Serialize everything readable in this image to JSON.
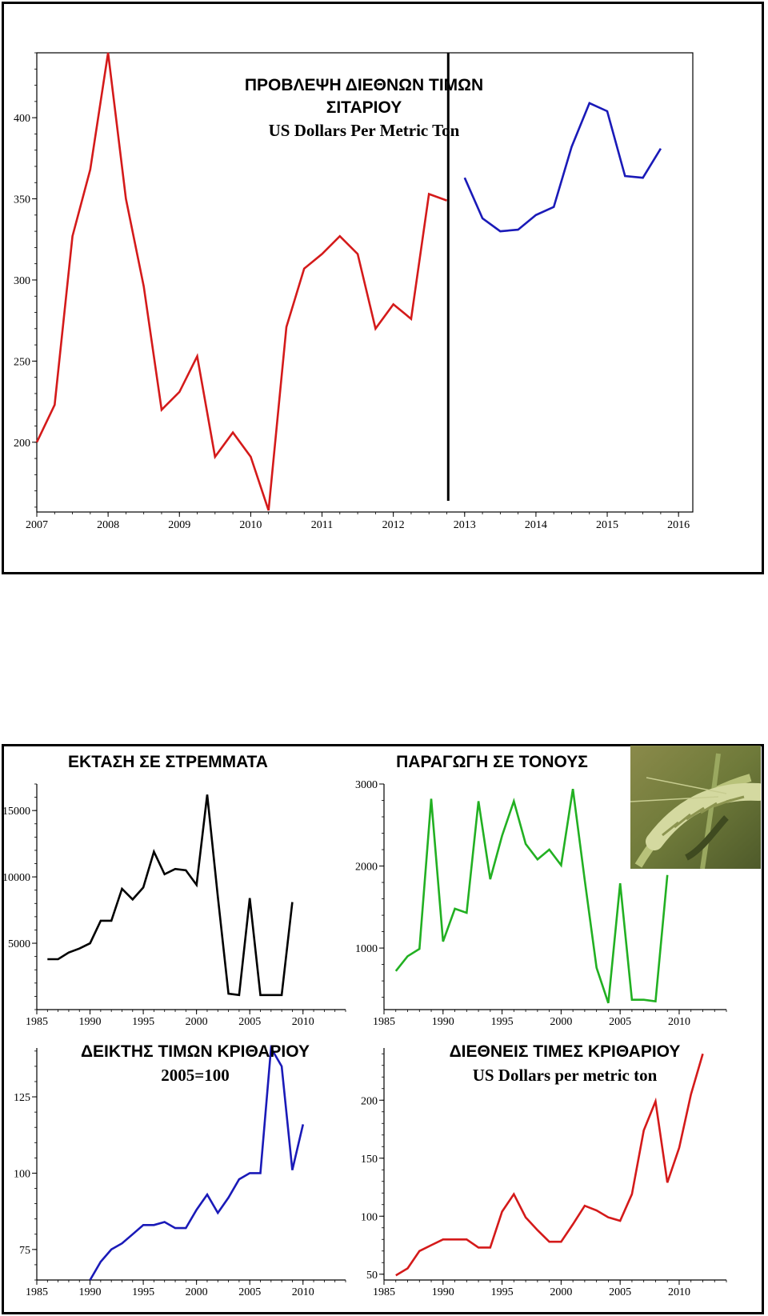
{
  "colors": {
    "wheat_hist": "#d41a1a",
    "wheat_forecast": "#1a1ab8",
    "area": "#000000",
    "production": "#22b022",
    "index": "#1a1ab8",
    "world_price": "#d41a1a"
  },
  "photo": {
    "icon": "barley-ear-photo"
  },
  "chart_data": [
    {
      "id": "wheat",
      "type": "line",
      "title_line1": "ΠΡΟΒΛΕΨΗ ΔΙΕΘΝΩΝ  ΤΙΜΩΝ",
      "title_line2": "ΣΙΤΑΡΙΟΥ",
      "subtitle": "US Dollars Per Metric Ton",
      "xlim": [
        2007,
        2016.2
      ],
      "ylim": [
        157,
        440
      ],
      "x_ticks": [
        "2007",
        "2008",
        "2009",
        "2010",
        "2011",
        "2012",
        "2013",
        "2014",
        "2015",
        "2016"
      ],
      "y_ticks": [
        "200",
        "250",
        "300",
        "350",
        "400"
      ],
      "divider_x": 2012.77,
      "series": [
        {
          "x": [
            2007.0,
            2007.25,
            2007.5,
            2007.75,
            2008.0,
            2008.25,
            2008.5,
            2008.75,
            2009.0,
            2009.25,
            2009.5,
            2009.75,
            2010.0,
            2010.25,
            2010.5,
            2010.75,
            2011.0,
            2011.25,
            2011.5,
            2011.75,
            2012.0,
            2012.25,
            2012.5,
            2012.75
          ],
          "y": [
            200,
            223,
            327,
            368,
            440,
            350,
            296,
            220,
            231,
            253,
            191,
            206,
            191,
            158,
            271,
            307,
            316,
            327,
            316,
            270,
            285,
            276,
            353,
            349
          ]
        },
        {
          "x": [
            2013.0,
            2013.25,
            2013.5,
            2013.75,
            2014.0,
            2014.25,
            2014.5,
            2014.75,
            2015.0,
            2015.25,
            2015.5,
            2015.75
          ],
          "y": [
            363,
            338,
            330,
            331,
            340,
            345,
            382,
            409,
            404,
            364,
            363,
            381
          ]
        }
      ]
    },
    {
      "id": "area",
      "type": "line",
      "title": "ΕΚΤΑΣΗ ΣΕ ΣΤΡΕΜΜΑΤΑ",
      "xlim": [
        1985,
        2014
      ],
      "ylim": [
        0,
        17000
      ],
      "x_ticks": [
        "1985",
        "1990",
        "1995",
        "2000",
        "2005",
        "2010"
      ],
      "y_ticks": [
        "5000",
        "10000",
        "15000"
      ],
      "series": [
        {
          "x": [
            1986,
            1987,
            1988,
            1989,
            1990,
            1991,
            1992,
            1993,
            1994,
            1995,
            1996,
            1997,
            1998,
            1999,
            2000,
            2001,
            2002,
            2003,
            2004,
            2005,
            2006,
            2007,
            2008,
            2009
          ],
          "y": [
            3800,
            3800,
            4300,
            4600,
            5000,
            6700,
            6700,
            9100,
            8300,
            9200,
            11900,
            10200,
            10600,
            10500,
            9400,
            16200,
            8500,
            1200,
            1100,
            8400,
            1100,
            1100,
            1100,
            8100
          ]
        }
      ]
    },
    {
      "id": "production",
      "type": "line",
      "title": "ΠΑΡΑΓΩΓΗ ΣΕ ΤΟΝΟΥΣ",
      "xlim": [
        1985,
        2014
      ],
      "ylim": [
        250,
        3000
      ],
      "x_ticks": [
        "1985",
        "1990",
        "1995",
        "2000",
        "2005",
        "2010"
      ],
      "y_ticks": [
        "1000",
        "2000",
        "3000"
      ],
      "series": [
        {
          "x": [
            1986,
            1987,
            1988,
            1989,
            1990,
            1991,
            1992,
            1993,
            1994,
            1995,
            1996,
            1997,
            1998,
            1999,
            2000,
            2001,
            2002,
            2003,
            2004,
            2005,
            2006,
            2007,
            2008,
            2009
          ],
          "y": [
            720,
            900,
            990,
            2820,
            1080,
            1480,
            1430,
            2790,
            1840,
            2370,
            2790,
            2270,
            2080,
            2200,
            2010,
            2940,
            1830,
            760,
            330,
            1790,
            370,
            370,
            350,
            1890
          ]
        }
      ]
    },
    {
      "id": "index",
      "type": "line",
      "title": "ΔΕΙΚΤΗΣ ΤΙΜΩΝ ΚΡΙΘΑΡΙΟΥ",
      "subtitle": "2005=100",
      "xlim": [
        1985,
        2014
      ],
      "ylim": [
        65,
        141
      ],
      "x_ticks": [
        "1985",
        "1990",
        "1995",
        "2000",
        "2005",
        "2010"
      ],
      "y_ticks": [
        "75",
        "100",
        "125"
      ],
      "series": [
        {
          "x": [
            1990,
            1991,
            1992,
            1993,
            1994,
            1995,
            1996,
            1997,
            1998,
            1999,
            2000,
            2001,
            2002,
            2003,
            2004,
            2005,
            2006,
            2007,
            2008,
            2009,
            2010
          ],
          "y": [
            65,
            71,
            75,
            77,
            80,
            83,
            83,
            84,
            82,
            82,
            88,
            93,
            87,
            92,
            98,
            100,
            100,
            141,
            135,
            101,
            116
          ]
        }
      ]
    },
    {
      "id": "world_price",
      "type": "line",
      "title": "ΔΙΕΘΝΕΙΣ ΤΙΜΕΣ ΚΡΙΘΑΡΙΟΥ",
      "subtitle": "US Dollars per metric ton",
      "xlim": [
        1985,
        2014
      ],
      "ylim": [
        45,
        245
      ],
      "x_ticks": [
        "1985",
        "1990",
        "1995",
        "2000",
        "2005",
        "2010"
      ],
      "y_ticks": [
        "50",
        "100",
        "150",
        "200"
      ],
      "series": [
        {
          "x": [
            1986,
            1987,
            1988,
            1989,
            1990,
            1991,
            1992,
            1993,
            1994,
            1995,
            1996,
            1997,
            1998,
            1999,
            2000,
            2001,
            2002,
            2003,
            2004,
            2005,
            2006,
            2007,
            2008,
            2009,
            2010,
            2011,
            2012
          ],
          "y": [
            49,
            55,
            70,
            75,
            80,
            80,
            80,
            73,
            73,
            104,
            119,
            99,
            88,
            78,
            78,
            93,
            109,
            105,
            99,
            96,
            119,
            174,
            199,
            129,
            159,
            205,
            240
          ]
        }
      ]
    }
  ]
}
